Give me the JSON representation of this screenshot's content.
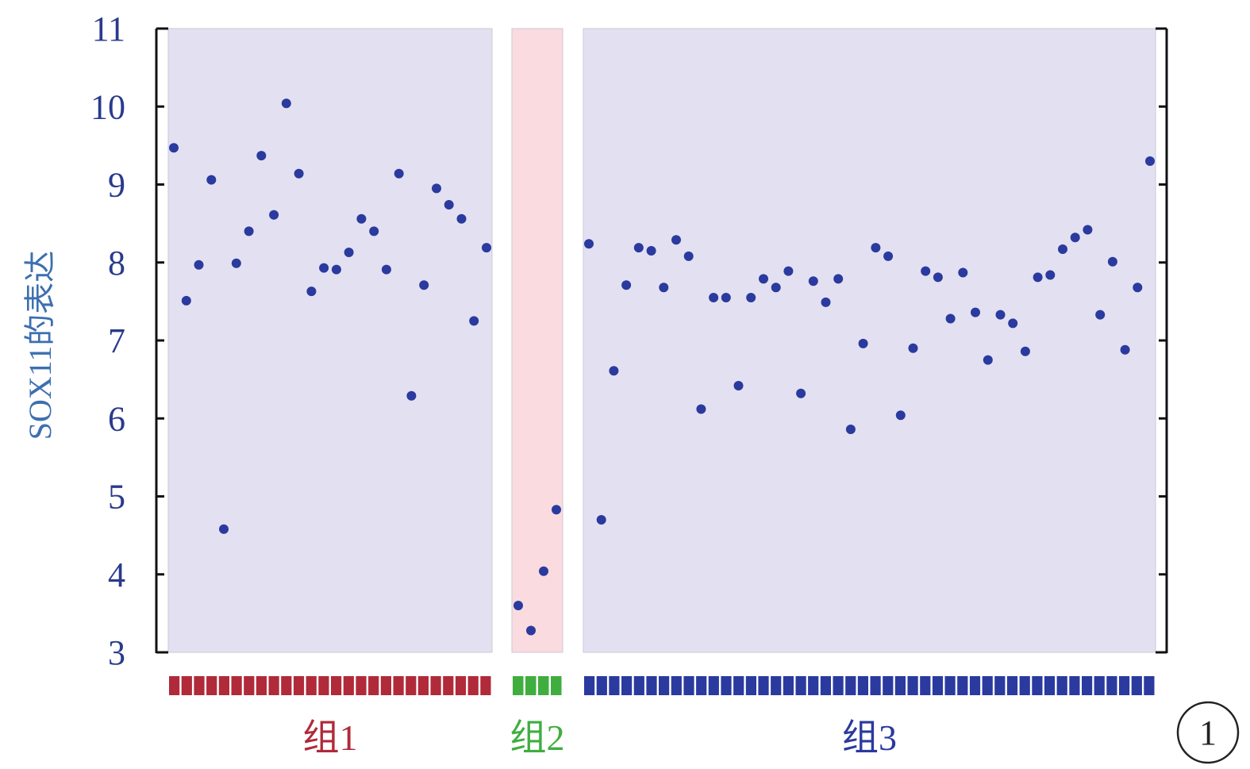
{
  "figure_number": "1",
  "chart_data": {
    "type": "scatter",
    "ylabel": "SOX11的表达",
    "ylim": [
      3,
      11
    ],
    "yticks": [
      3,
      4,
      5,
      6,
      7,
      8,
      9,
      10,
      11
    ],
    "grid": false,
    "legend": "none",
    "series": [
      {
        "name": "组1",
        "color": "#2a3a9e",
        "panel_color": "#e3e1f1",
        "bar_color": "#b02a3a",
        "label_color": "#b02a3a",
        "values": [
          9.47,
          7.51,
          7.97,
          9.06,
          4.58,
          7.99,
          8.4,
          9.37,
          8.61,
          10.04,
          9.14,
          7.63,
          7.93,
          7.91,
          8.13,
          8.56,
          8.4,
          7.91,
          9.14,
          6.29,
          7.71,
          8.95,
          8.74,
          8.56,
          7.25,
          8.19
        ]
      },
      {
        "name": "组2",
        "color": "#2a3a9e",
        "panel_color": "#fadbe0",
        "bar_color": "#3fae3f",
        "label_color": "#3fae3f",
        "values": [
          3.6,
          3.28,
          4.04,
          4.83
        ]
      },
      {
        "name": "组3",
        "color": "#2a3a9e",
        "panel_color": "#e3e1f1",
        "bar_color": "#2a3a9e",
        "label_color": "#2a3a9e",
        "values": [
          8.24,
          4.7,
          6.61,
          7.71,
          8.19,
          8.15,
          7.68,
          8.29,
          8.08,
          6.12,
          7.55,
          7.55,
          6.42,
          7.55,
          7.79,
          7.68,
          7.89,
          6.32,
          7.76,
          7.49,
          7.79,
          5.86,
          6.96,
          8.19,
          8.08,
          6.04,
          6.9,
          7.89,
          7.81,
          7.28,
          7.87,
          7.36,
          6.75,
          7.33,
          7.22,
          6.86,
          7.81,
          7.84,
          8.17,
          8.32,
          8.42,
          7.33,
          8.01,
          6.88,
          7.68,
          9.3
        ]
      }
    ]
  }
}
